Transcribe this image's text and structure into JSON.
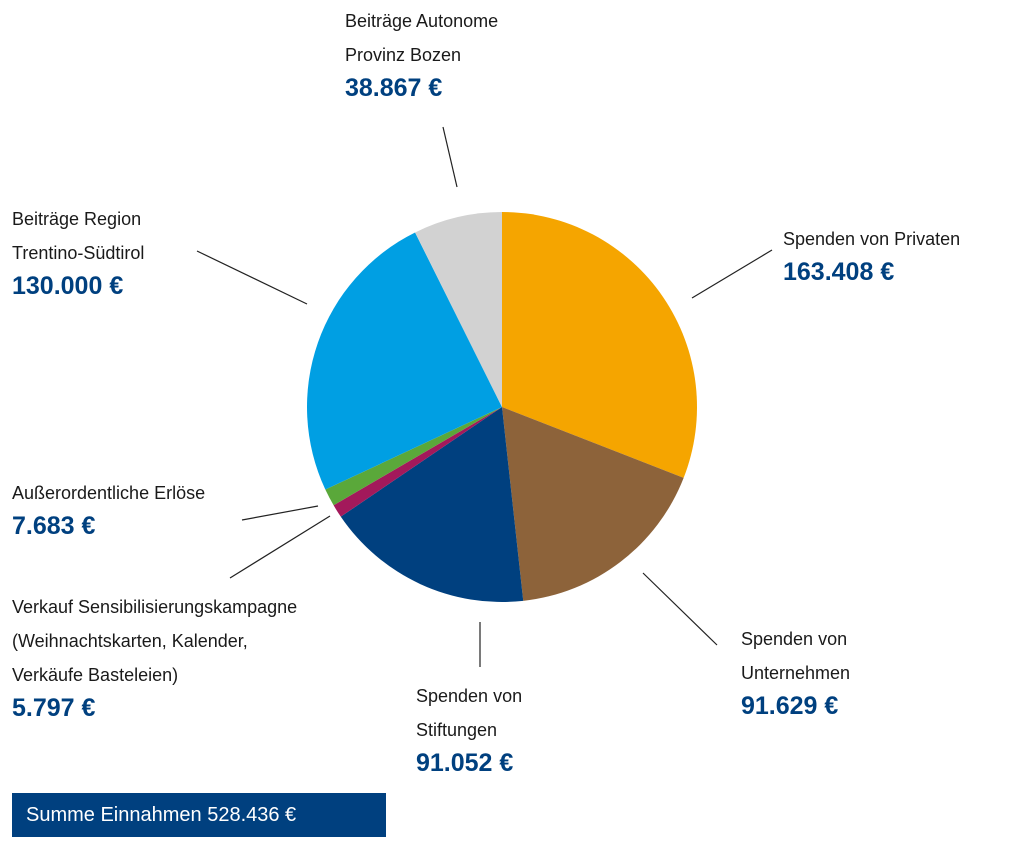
{
  "chart_data": {
    "type": "pie",
    "categories": [
      "Spenden von Privaten",
      "Spenden von\nUnternehmen",
      "Spenden von\nStiftungen",
      "Verkauf Sensibilisierungskampagne\n(Weihnachtskarten, Kalender,\nVerkäufe Basteleien)",
      "Außerordentliche Erlöse",
      "Beiträge Region\nTrentino-Südtirol",
      "Beiträge Autonome\nProvinz Bozen"
    ],
    "values": [
      163408,
      91629,
      91052,
      5797,
      7683,
      130000,
      38867
    ],
    "value_labels": [
      "163.408 €",
      "91.629 €",
      "91.052 €",
      "5.797 €",
      "7.683 €",
      "130.000 €",
      "38.867 €"
    ],
    "colors": [
      "#f5a500",
      "#8d633a",
      "#00407f",
      "#a3195b",
      "#5aa83a",
      "#009fe3",
      "#d2d2d2"
    ],
    "total_label": "Summe Einnahmen 528.436 €"
  }
}
